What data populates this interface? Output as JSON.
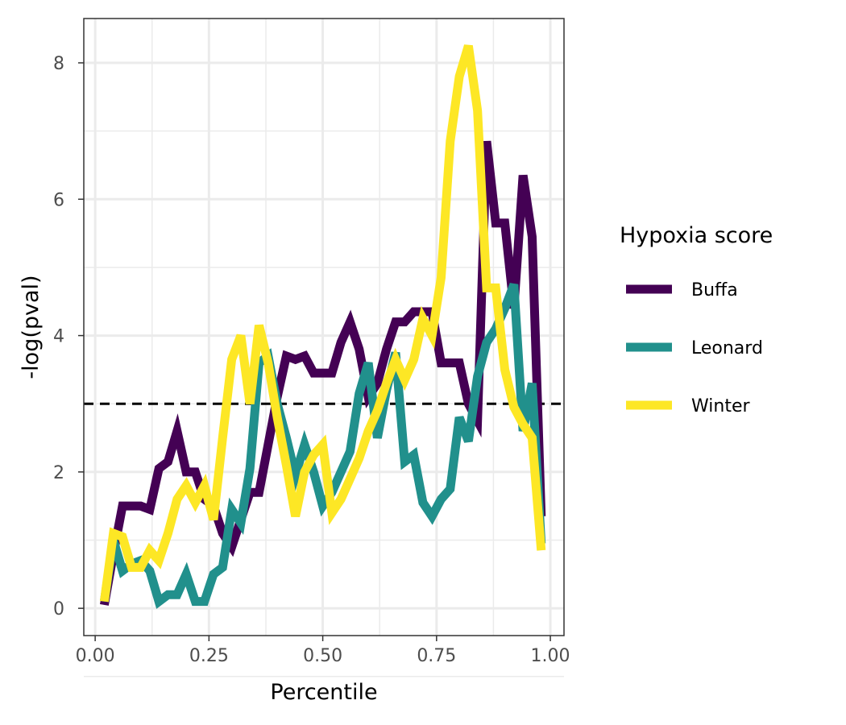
{
  "chart_data": {
    "type": "line",
    "xlabel": "Percentile",
    "ylabel": "-log(pval)",
    "xlim": [
      -0.025,
      1.03
    ],
    "ylim": [
      -0.4,
      8.65
    ],
    "x_ticks": [
      0,
      0.25,
      0.5,
      0.75,
      1
    ],
    "x_tick_labels": [
      "0.00",
      "0.25",
      "0.50",
      "0.75",
      "1.00"
    ],
    "y_ticks": [
      0,
      2,
      4,
      6,
      8
    ],
    "y_tick_labels": [
      "0",
      "2",
      "4",
      "6",
      "8"
    ],
    "grid": true,
    "legend_title": "Hypoxia score",
    "legend_position": "right",
    "threshold": {
      "y": 3,
      "style": "dashed",
      "color": "#000000"
    },
    "x": [
      0.02,
      0.04,
      0.06,
      0.08,
      0.1,
      0.12,
      0.14,
      0.16,
      0.18,
      0.2,
      0.22,
      0.24,
      0.26,
      0.28,
      0.3,
      0.32,
      0.34,
      0.36,
      0.38,
      0.4,
      0.42,
      0.44,
      0.46,
      0.48,
      0.5,
      0.52,
      0.54,
      0.56,
      0.58,
      0.6,
      0.62,
      0.64,
      0.66,
      0.68,
      0.7,
      0.72,
      0.74,
      0.76,
      0.78,
      0.8,
      0.82,
      0.84,
      0.86,
      0.88,
      0.9,
      0.92,
      0.94,
      0.96,
      0.98
    ],
    "series": [
      {
        "name": "Buffa",
        "color": "#440154",
        "values": [
          0.05,
          0.8,
          1.5,
          1.5,
          1.5,
          1.45,
          2.05,
          2.15,
          2.6,
          2.0,
          2.0,
          1.6,
          1.5,
          1.1,
          0.9,
          1.3,
          1.7,
          1.7,
          2.4,
          3.1,
          3.7,
          3.65,
          3.7,
          3.45,
          3.45,
          3.45,
          3.9,
          4.2,
          3.8,
          3.1,
          3.3,
          3.8,
          4.2,
          4.2,
          4.35,
          4.35,
          4.35,
          3.6,
          3.6,
          3.6,
          3.0,
          2.75,
          6.85,
          5.65,
          5.65,
          4.4,
          6.35,
          5.45,
          1.35
        ]
      },
      {
        "name": "Leonard",
        "color": "#21908C",
        "values": [
          0.1,
          1.0,
          0.55,
          0.65,
          0.7,
          0.55,
          0.1,
          0.2,
          0.2,
          0.5,
          0.1,
          0.1,
          0.5,
          0.6,
          1.45,
          1.25,
          2.05,
          3.6,
          3.7,
          3.0,
          2.5,
          1.95,
          2.4,
          2.0,
          1.5,
          1.7,
          2.0,
          2.3,
          3.15,
          3.6,
          2.5,
          3.2,
          3.75,
          2.15,
          2.25,
          1.55,
          1.35,
          1.6,
          1.75,
          2.8,
          2.45,
          3.4,
          3.9,
          4.1,
          4.4,
          4.75,
          2.6,
          3.3,
          0.95
        ]
      },
      {
        "name": "Winter",
        "color": "#FDE725",
        "values": [
          0.1,
          1.1,
          1.05,
          0.6,
          0.6,
          0.85,
          0.7,
          1.1,
          1.6,
          1.8,
          1.55,
          1.8,
          1.3,
          2.5,
          3.65,
          4.0,
          3.0,
          4.15,
          3.6,
          2.8,
          2.1,
          1.35,
          2.0,
          2.25,
          2.4,
          1.4,
          1.6,
          1.9,
          2.2,
          2.6,
          2.9,
          3.3,
          3.65,
          3.35,
          3.65,
          4.25,
          4.0,
          4.85,
          6.85,
          7.8,
          8.25,
          7.3,
          4.7,
          4.7,
          3.5,
          2.95,
          2.7,
          2.5,
          0.85
        ]
      }
    ]
  }
}
